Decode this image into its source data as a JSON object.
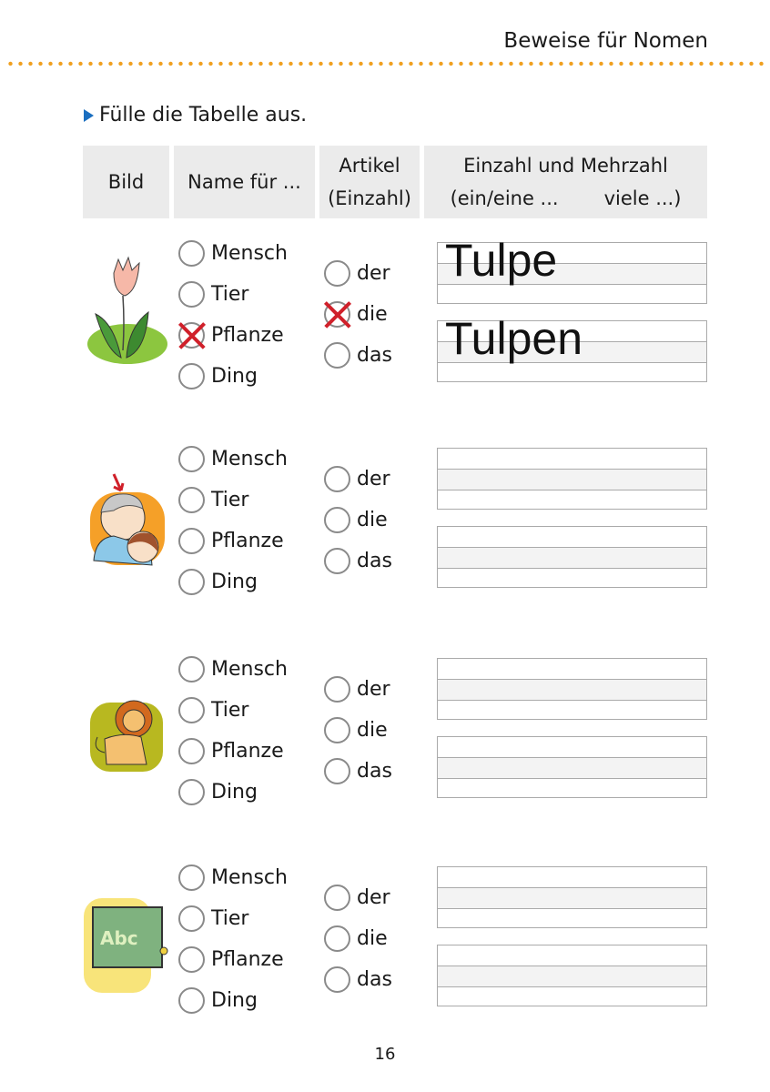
{
  "running_head": "Beweise für Nomen",
  "instruction": "Fülle die Tabelle aus.",
  "table": {
    "headers": {
      "bild": "Bild",
      "name": "Name für ...",
      "artikel_1": "Artikel",
      "artikel_2": "(Einzahl)",
      "zahl_1": "Einzahl und Mehrzahl",
      "zahl_2a": "(ein/eine ...",
      "zahl_2b": "viele ...)"
    },
    "name_options": [
      "Mensch",
      "Tier",
      "Pflanze",
      "Ding"
    ],
    "article_options": [
      "der",
      "die",
      "das"
    ],
    "rows": [
      {
        "picture": "tulip",
        "name_checked": "Pflanze",
        "article_checked": "die",
        "singular": "Tulpe",
        "plural": "Tulpen"
      },
      {
        "picture": "grandmother-hugging-child",
        "name_checked": null,
        "article_checked": null,
        "singular": "",
        "plural": ""
      },
      {
        "picture": "lion",
        "name_checked": null,
        "article_checked": null,
        "singular": "",
        "plural": ""
      },
      {
        "picture": "chalkboard",
        "picture_text": "Abc",
        "name_checked": null,
        "article_checked": null,
        "singular": "",
        "plural": ""
      }
    ]
  },
  "page_number": "16",
  "colors": {
    "accent_dots": "#f0a020",
    "check_mark": "#d0202a",
    "bullet": "#1b6fc0",
    "header_bg": "#ebebeb"
  }
}
